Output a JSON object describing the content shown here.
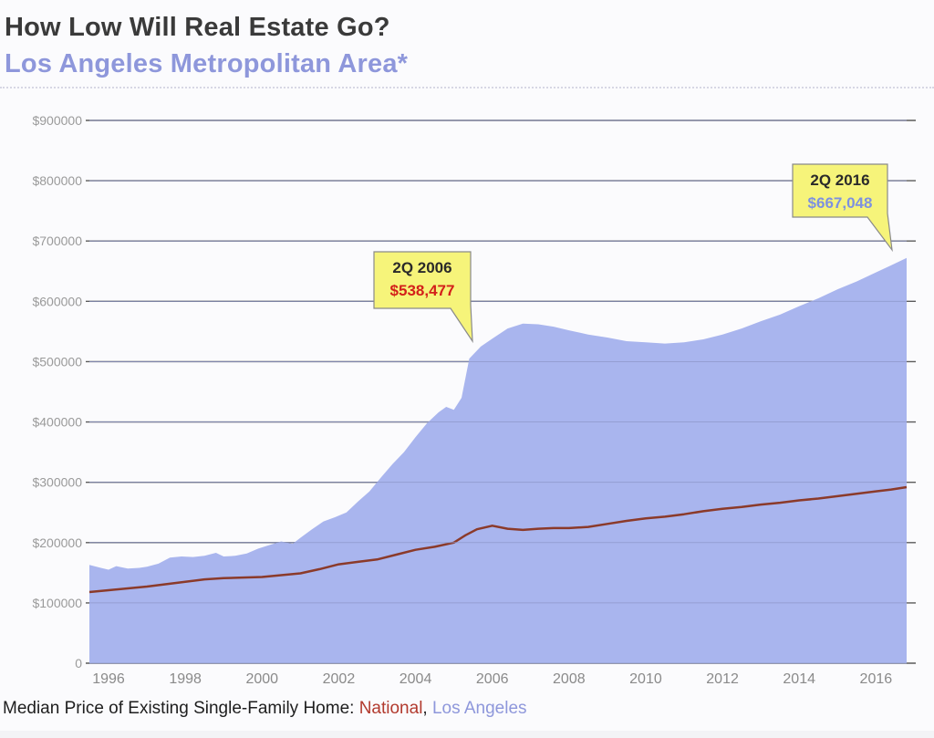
{
  "header": {
    "title": "How Low Will Real Estate Go?",
    "subtitle": "Los Angeles Metropolitan Area*"
  },
  "caption": {
    "prefix": "Median Price of Existing Single-Family Home: ",
    "national": "National",
    "separator": ", ",
    "la": "Los Angeles"
  },
  "colors": {
    "la_fill": "#a9b5ee",
    "national_line": "#8b3a2a",
    "annotation_bg": "#f6f47a",
    "annotation_2006_value": "#d3201a",
    "annotation_2016_value": "#7d91e0"
  },
  "chart_data": {
    "type": "area",
    "title": "How Low Will Real Estate Go?",
    "subtitle": "Los Angeles Metropolitan Area*",
    "xlabel": "",
    "ylabel": "",
    "xlim": [
      1995.5,
      2016.8
    ],
    "ylim": [
      0,
      900000
    ],
    "grid": true,
    "y_ticks": [
      0,
      100000,
      200000,
      300000,
      400000,
      500000,
      600000,
      700000,
      800000,
      900000
    ],
    "y_tick_labels": [
      "0",
      "$100000",
      "$200000",
      "$300000",
      "$400000",
      "$500000",
      "$600000",
      "$700000",
      "$800000",
      "$900000"
    ],
    "x_ticks": [
      1996,
      1998,
      2000,
      2002,
      2004,
      2006,
      2008,
      2010,
      2012,
      2014,
      2016
    ],
    "x_tick_labels": [
      "1996",
      "1998",
      "2000",
      "2002",
      "2004",
      "2006",
      "2008",
      "2010",
      "2012",
      "2014",
      "2016"
    ],
    "legend": "bottom caption",
    "series": [
      {
        "name": "Los Angeles",
        "style": "area",
        "x": [
          1995.5,
          1995.8,
          1996.0,
          1996.2,
          1996.5,
          1996.8,
          1997.0,
          1997.3,
          1997.6,
          1997.9,
          1998.2,
          1998.5,
          1998.8,
          1999.0,
          1999.3,
          1999.6,
          1999.9,
          2000.2,
          2000.5,
          2000.8,
          2001.0,
          2001.3,
          2001.6,
          2001.9,
          2002.2,
          2002.5,
          2002.8,
          2003.1,
          2003.4,
          2003.7,
          2004.0,
          2004.3,
          2004.6,
          2004.8,
          2005.0,
          2005.2,
          2005.4,
          2005.7,
          2006.0,
          2006.4,
          2006.8,
          2007.2,
          2007.6,
          2008.0,
          2008.5,
          2009.0,
          2009.5,
          2010.0,
          2010.5,
          2011.0,
          2011.5,
          2012.0,
          2012.5,
          2013.0,
          2013.5,
          2014.0,
          2014.5,
          2015.0,
          2015.5,
          2016.0,
          2016.4,
          2016.8
        ],
        "values": [
          163000,
          158000,
          155000,
          161000,
          157000,
          158000,
          160000,
          165000,
          175000,
          177000,
          176000,
          178000,
          183000,
          177000,
          178000,
          182000,
          190000,
          196000,
          202000,
          198000,
          208000,
          222000,
          235000,
          242000,
          250000,
          268000,
          285000,
          308000,
          330000,
          350000,
          375000,
          398000,
          416000,
          425000,
          420000,
          440000,
          505000,
          525000,
          538000,
          555000,
          563000,
          562000,
          558000,
          552000,
          545000,
          540000,
          534000,
          532000,
          530000,
          532000,
          537000,
          545000,
          555000,
          567000,
          578000,
          592000,
          605000,
          620000,
          633000,
          648000,
          660000,
          672000
        ]
      },
      {
        "name": "National",
        "style": "line",
        "x": [
          1995.5,
          1996.0,
          1996.5,
          1997.0,
          1997.5,
          1998.0,
          1998.5,
          1999.0,
          1999.5,
          2000.0,
          2000.5,
          2001.0,
          2001.5,
          2002.0,
          2002.5,
          2003.0,
          2003.5,
          2004.0,
          2004.5,
          2005.0,
          2005.3,
          2005.6,
          2006.0,
          2006.4,
          2006.8,
          2007.2,
          2007.6,
          2008.0,
          2008.5,
          2009.0,
          2009.5,
          2010.0,
          2010.5,
          2011.0,
          2011.5,
          2012.0,
          2012.5,
          2013.0,
          2013.5,
          2014.0,
          2014.5,
          2015.0,
          2015.5,
          2016.0,
          2016.4,
          2016.8
        ],
        "values": [
          118000,
          121000,
          124000,
          127000,
          131000,
          135000,
          139000,
          141000,
          142000,
          143000,
          146000,
          149000,
          156000,
          164000,
          168000,
          172000,
          180000,
          188000,
          193000,
          200000,
          212000,
          222000,
          228000,
          223000,
          221000,
          223000,
          224000,
          224000,
          226000,
          231000,
          236000,
          240000,
          243000,
          247000,
          252000,
          256000,
          259000,
          263000,
          266000,
          270000,
          273000,
          277000,
          281000,
          285000,
          288000,
          292000
        ]
      }
    ],
    "annotations": [
      {
        "label": "2Q 2006",
        "value": "$538,477",
        "x": 2006.0,
        "y": 538000
      },
      {
        "label": "2Q 2016",
        "value": "$667,048",
        "x": 2016.5,
        "y": 667000
      }
    ]
  }
}
